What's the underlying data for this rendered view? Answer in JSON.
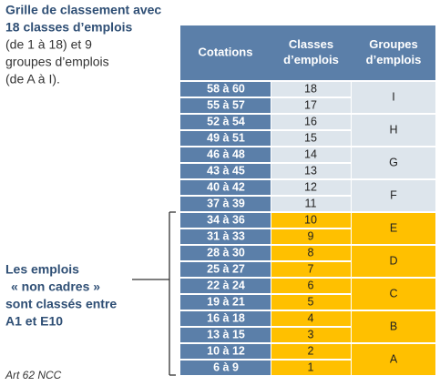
{
  "intro": {
    "bold_lines": [
      "Grille de classement avec",
      "18 classes d’emplois"
    ],
    "lines": [
      "(de 1 à 18) et 9",
      "groupes d’emplois",
      "(de A à I)."
    ]
  },
  "note": {
    "lines": [
      "Les emplois",
      "« non cadres »",
      "sont classés entre",
      "A1 et E10"
    ]
  },
  "footer": "Art 62 NCC",
  "table": {
    "headers": [
      [
        "Cotations"
      ],
      [
        "Classes",
        "d’emplois"
      ],
      [
        "Groupes",
        "d’emplois"
      ]
    ],
    "rows": [
      [
        "58 à 60",
        "18"
      ],
      [
        "55 à 57",
        "17"
      ],
      [
        "52 à 54",
        "16"
      ],
      [
        "49 à 51",
        "15"
      ],
      [
        "46 à 48",
        "14"
      ],
      [
        "43 à 45",
        "13"
      ],
      [
        "40 à 42",
        "12"
      ],
      [
        "37 à 39",
        "11"
      ],
      [
        "34 à 36",
        "10"
      ],
      [
        "31 à 33",
        "9"
      ],
      [
        "28 à 30",
        "8"
      ],
      [
        "25 à 27",
        "7"
      ],
      [
        "22 à 24",
        "6"
      ],
      [
        "19 à 21",
        "5"
      ],
      [
        "16 à 18",
        "4"
      ],
      [
        "13 à 15",
        "3"
      ],
      [
        "10 à 12",
        "2"
      ],
      [
        "6 à 9",
        "1"
      ]
    ],
    "groups": [
      "I",
      "H",
      "G",
      "F",
      "E",
      "D",
      "C",
      "B",
      "A"
    ]
  }
}
